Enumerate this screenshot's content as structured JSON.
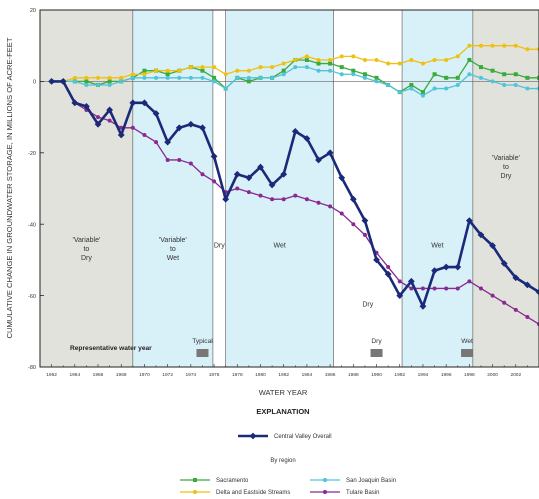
{
  "chart_data": {
    "type": "line",
    "ylabel": "CUMULATIVE CHANGE IN GROUNDWATER STORAGE, IN MILLIONS OF ACRE-FEET",
    "xlabel": "WATER YEAR",
    "xlim": [
      1961,
      2004
    ],
    "ylim": [
      -80,
      20
    ],
    "x_ticks": [
      1962,
      1964,
      1966,
      1968,
      1970,
      1972,
      1974,
      1976,
      1978,
      1980,
      1982,
      1984,
      1986,
      1988,
      1990,
      1992,
      1994,
      1996,
      1998,
      2000,
      2002
    ],
    "y_ticks": [
      20,
      0,
      -20,
      -40,
      -60,
      -80
    ],
    "periods": [
      {
        "start": 1961,
        "end": 1969,
        "fill": "#e2e2dc",
        "label_lines": [
          "'Variable'",
          "to",
          "Dry"
        ],
        "label_y": -45
      },
      {
        "start": 1969,
        "end": 1975.9,
        "fill": "#d8f0f8",
        "label_lines": [
          "'Variable'",
          "to",
          "Wet"
        ],
        "label_y": -45
      },
      {
        "start": 1975.9,
        "end": 1977,
        "fill": "#ffffff",
        "label_lines": [
          "Dry"
        ],
        "label_y": -46.5
      },
      {
        "start": 1977,
        "end": 1986.3,
        "fill": "#d8f0f8",
        "label_lines": [
          "Wet"
        ],
        "label_y": -46.5
      },
      {
        "start": 1986.3,
        "end": 1992.2,
        "fill": "#ffffff",
        "label_lines": [
          "Dry"
        ],
        "label_y": -63
      },
      {
        "start": 1992.2,
        "end": 1998.3,
        "fill": "#d8f0f8",
        "label_lines": [
          "Wet"
        ],
        "label_y": -46.5
      },
      {
        "start": 1998.3,
        "end": 2004,
        "fill": "#e2e2dc",
        "label_lines": [
          "'Variable'",
          "to",
          "Dry"
        ],
        "label_y": -22
      }
    ],
    "representative_label": "Representative water year",
    "representative_years": [
      {
        "label": "Typical",
        "year": 1975
      },
      {
        "label": "Dry",
        "year": 1990
      },
      {
        "label": "Wet",
        "year": 1997.8
      }
    ],
    "x": [
      1962,
      1963,
      1964,
      1965,
      1966,
      1967,
      1968,
      1969,
      1970,
      1971,
      1972,
      1973,
      1974,
      1975,
      1976,
      1977,
      1978,
      1979,
      1980,
      1981,
      1982,
      1983,
      1984,
      1985,
      1986,
      1987,
      1988,
      1989,
      1990,
      1991,
      1992,
      1993,
      1994,
      1995,
      1996,
      1997,
      1998,
      1999,
      2000,
      2001,
      2002,
      2003,
      2004
    ],
    "series": [
      {
        "name": "Central Valley Overall",
        "color": "#1a2a78",
        "bold": true,
        "values": [
          0,
          0,
          -6,
          -7,
          -12,
          -8,
          -15,
          -6,
          -6,
          -9,
          -17,
          -13,
          -12,
          -13,
          -21,
          -33,
          -26,
          -27,
          -24,
          -29,
          -26,
          -14,
          -16,
          -22,
          -20,
          -27,
          -33,
          -39,
          -50,
          -54,
          -60,
          -56,
          -63,
          -53,
          -52,
          -52,
          -39,
          -43,
          -46,
          -51,
          -55,
          -57,
          -59
        ]
      },
      {
        "name": "Sacramento",
        "color": "#3aaa3a",
        "values": [
          0,
          0,
          0,
          0,
          -1,
          0,
          0,
          1,
          3,
          3,
          2,
          3,
          4,
          3,
          1,
          -2,
          1,
          0,
          1,
          1,
          3,
          6,
          6,
          5,
          5,
          4,
          3,
          2,
          1,
          -1,
          -3,
          -1,
          -3,
          2,
          1,
          1,
          6,
          4,
          3,
          2,
          2,
          1,
          1
        ]
      },
      {
        "name": "Delta and Eastside Streams",
        "color": "#f0c010",
        "values": [
          0,
          0,
          1,
          1,
          1,
          1,
          1,
          2,
          2,
          3,
          3,
          3,
          4,
          4,
          4,
          2,
          3,
          3,
          4,
          4,
          5,
          6,
          7,
          6,
          6,
          7,
          7,
          6,
          6,
          5,
          5,
          6,
          5,
          6,
          6,
          7,
          10,
          10,
          10,
          10,
          10,
          9,
          9
        ]
      },
      {
        "name": "San Joaquin Basin",
        "color": "#50c4d8",
        "values": [
          0,
          0,
          0,
          -1,
          -1,
          -1,
          0,
          1,
          1,
          1,
          1,
          1,
          1,
          1,
          0,
          -2,
          1,
          1,
          1,
          1,
          2,
          4,
          4,
          3,
          3,
          2,
          2,
          1,
          0,
          -1,
          -3,
          -2,
          -4,
          -2,
          -2,
          -1,
          2,
          1,
          0,
          -1,
          -1,
          -2,
          -2
        ]
      },
      {
        "name": "Tulare Basin",
        "color": "#882a90",
        "values": [
          0,
          0,
          -6,
          -8,
          -10,
          -11,
          -13,
          -13,
          -15,
          -17,
          -22,
          -22,
          -23,
          -26,
          -28,
          -31,
          -30,
          -31,
          -32,
          -33,
          -33,
          -32,
          -33,
          -34,
          -35,
          -37,
          -40,
          -43,
          -48,
          -52,
          -56,
          -58,
          -58,
          -58,
          -58,
          -58,
          -56,
          -58,
          -60,
          -62,
          -64,
          -66,
          -68
        ]
      }
    ],
    "explanation_title": "EXPLANATION",
    "by_region_label": "By region"
  }
}
